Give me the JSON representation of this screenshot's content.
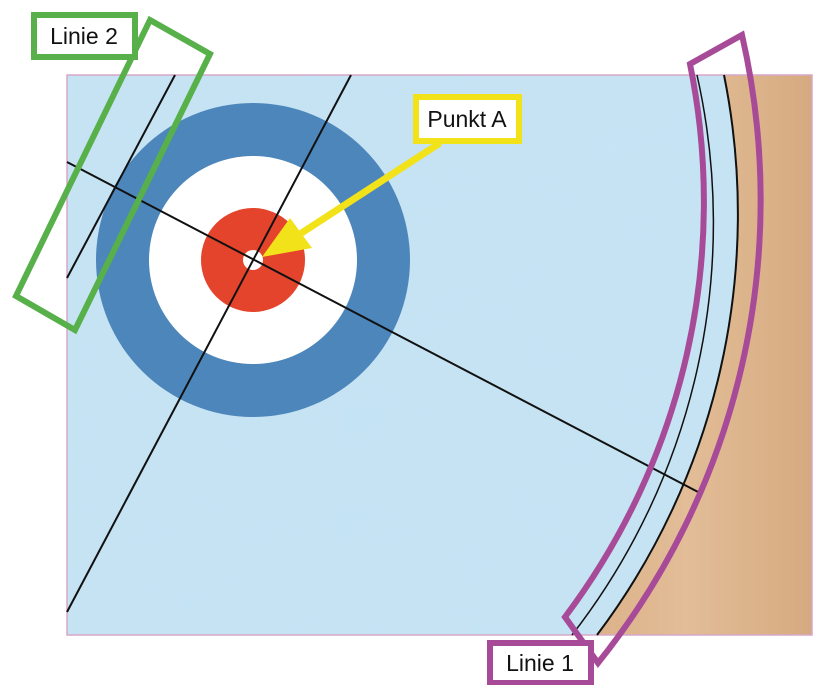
{
  "labels": {
    "line2": "Linie 2",
    "line1": "Linie 1",
    "pointA": "Punkt A"
  },
  "colors": {
    "ice_base": "#c6e3f3",
    "ice_dark": "#8cc4e6",
    "wood": "#dcb48c",
    "house_outer": "#4c86bb",
    "house_middle": "#ffffff",
    "house_inner": "#e4442b",
    "line": "#111111",
    "line2_box": "#58b04b",
    "line1_box": "#a74b98",
    "pointA_box": "#f2e21a",
    "arrow": "#f2e21a"
  }
}
